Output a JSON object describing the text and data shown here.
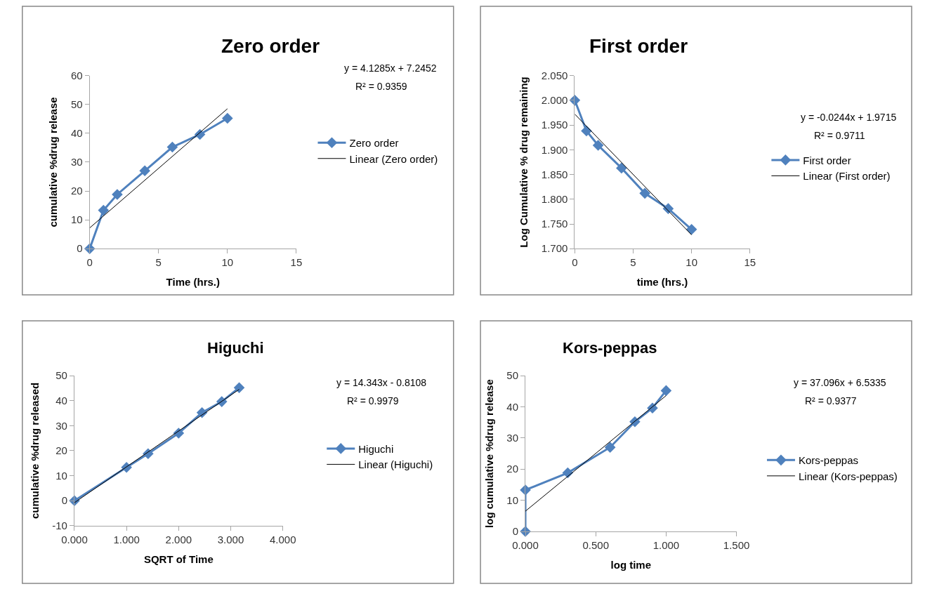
{
  "chart_data": [
    {
      "type": "line",
      "title": "Zero order",
      "xlabel": "Time (hrs.)",
      "ylabel": "cumulative %drug release",
      "xlim": [
        0,
        15
      ],
      "xticks": [
        0,
        5,
        10,
        15
      ],
      "ylim": [
        0,
        60
      ],
      "yticks": [
        0,
        10,
        20,
        30,
        40,
        50,
        60
      ],
      "legend": "right",
      "annotations": [
        "y = 4.1285x + 7.2452",
        "R² = 0.9359"
      ],
      "series": [
        {
          "name": "Zero order",
          "color": "#4f81bd",
          "marker": "diamond",
          "x": [
            0,
            1,
            2,
            4,
            6,
            8,
            10
          ],
          "values": [
            0,
            13.3,
            18.8,
            27,
            35.2,
            39.6,
            45.2
          ]
        },
        {
          "name": "Linear (Zero order)",
          "color": "#000000",
          "marker": "none",
          "x": [
            0,
            10
          ],
          "values": [
            7.2,
            48.5
          ]
        }
      ]
    },
    {
      "type": "line",
      "title": "First order",
      "xlabel": "time (hrs.)",
      "ylabel": "Log Cumulative % drug remaining",
      "xlim": [
        0,
        15
      ],
      "xticks": [
        0,
        5,
        10,
        15
      ],
      "ylim": [
        1.7,
        2.05
      ],
      "yticks": [
        {
          "value": 1.7,
          "label": "1.700"
        },
        {
          "value": 1.75,
          "label": "1.750"
        },
        {
          "value": 1.8,
          "label": "1.800"
        },
        {
          "value": 1.85,
          "label": "1.850"
        },
        {
          "value": 1.9,
          "label": "1.900"
        },
        {
          "value": 1.95,
          "label": "1.950"
        },
        {
          "value": 2.0,
          "label": "2.000"
        },
        {
          "value": 2.05,
          "label": "2.050"
        }
      ],
      "legend": "right",
      "annotations": [
        "y = -0.0244x + 1.9715",
        "R² = 0.9711"
      ],
      "series": [
        {
          "name": "First order",
          "color": "#4f81bd",
          "marker": "diamond",
          "x": [
            0,
            1,
            2,
            4,
            6,
            8,
            10
          ],
          "values": [
            2.0,
            1.938,
            1.909,
            1.863,
            1.812,
            1.781,
            1.739
          ]
        },
        {
          "name": "Linear (First order)",
          "color": "#000000",
          "marker": "none",
          "x": [
            0,
            10
          ],
          "values": [
            1.972,
            1.728
          ]
        }
      ]
    },
    {
      "type": "line",
      "title": "Higuchi",
      "xlabel": "SQRT of Time",
      "ylabel": "cumulative %drug released",
      "xlim": [
        0,
        4
      ],
      "xticks": [
        {
          "value": 0,
          "label": "0.000"
        },
        {
          "value": 1,
          "label": "1.000"
        },
        {
          "value": 2,
          "label": "2.000"
        },
        {
          "value": 3,
          "label": "3.000"
        },
        {
          "value": 4,
          "label": "4.000"
        }
      ],
      "ylim": [
        -10,
        50
      ],
      "yticks": [
        -10,
        0,
        10,
        20,
        30,
        40,
        50
      ],
      "legend": "right",
      "annotations": [
        "y = 14.343x - 0.8108",
        "R² = 0.9979"
      ],
      "series": [
        {
          "name": "Higuchi",
          "color": "#4f81bd",
          "marker": "diamond",
          "x": [
            0,
            1,
            1.414,
            2,
            2.449,
            2.828,
            3.162
          ],
          "values": [
            0,
            13.3,
            18.8,
            27,
            35.2,
            39.6,
            45.2
          ]
        },
        {
          "name": "Linear (Higuchi)",
          "color": "#000000",
          "marker": "none",
          "x": [
            0,
            3.162
          ],
          "values": [
            -0.8,
            44.5
          ]
        }
      ]
    },
    {
      "type": "line",
      "title": "Kors-peppas",
      "xlabel": "log time",
      "ylabel": "log cumulative %drug release",
      "xlim": [
        0,
        1.5
      ],
      "xticks": [
        {
          "value": 0,
          "label": "0.000"
        },
        {
          "value": 0.5,
          "label": "0.500"
        },
        {
          "value": 1,
          "label": "1.000"
        },
        {
          "value": 1.5,
          "label": "1.500"
        }
      ],
      "ylim": [
        0,
        50
      ],
      "yticks": [
        0,
        10,
        20,
        30,
        40,
        50
      ],
      "legend": "right",
      "annotations": [
        "y = 37.096x + 6.5335",
        "R² = 0.9377"
      ],
      "series": [
        {
          "name": "Kors-peppas",
          "color": "#4f81bd",
          "marker": "diamond",
          "x": [
            0,
            0,
            0.301,
            0.602,
            0.778,
            0.903,
            1.0
          ],
          "values": [
            0,
            13.3,
            18.8,
            27,
            35.2,
            39.6,
            45.2
          ]
        },
        {
          "name": "Linear (Kors-peppas)",
          "color": "#000000",
          "marker": "none",
          "x": [
            0,
            1
          ],
          "values": [
            6.5,
            43.6
          ]
        }
      ]
    }
  ]
}
